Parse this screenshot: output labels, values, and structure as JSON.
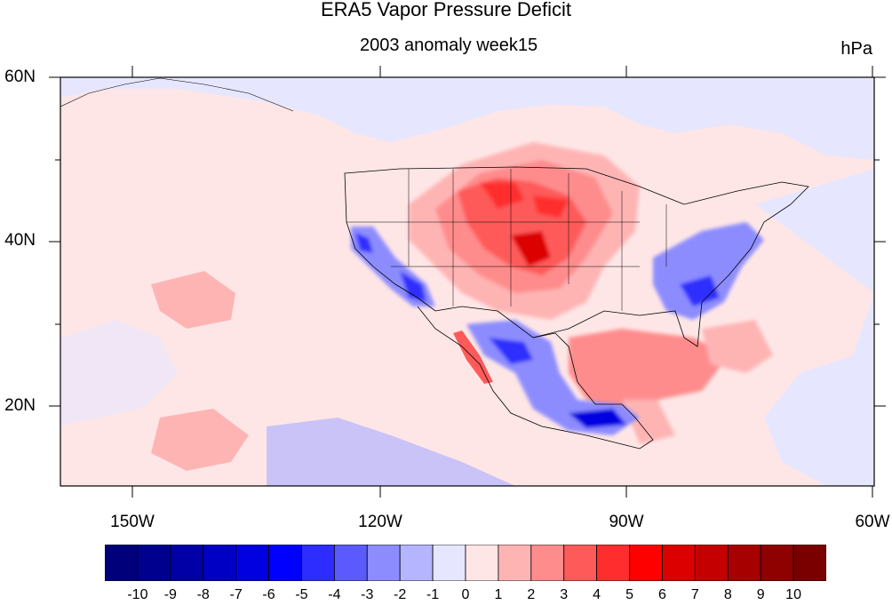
{
  "title": "ERA5 Vapor Pressure Deficit",
  "subtitle": "2003 anomaly week15",
  "units": "hPa",
  "map": {
    "lon_range": [
      -160,
      -60
    ],
    "lat_range": [
      10,
      60
    ],
    "lat_labels": [
      "60N",
      "40N",
      "20N"
    ],
    "lon_labels": [
      "150W",
      "120W",
      "90W",
      "60W"
    ]
  },
  "colorbar": {
    "labels": [
      "-10",
      "-9",
      "-8",
      "-7",
      "-6",
      "-5",
      "-4",
      "-3",
      "-2",
      "-1",
      "0",
      "1",
      "2",
      "3",
      "4",
      "5",
      "6",
      "7",
      "8",
      "9",
      "10"
    ],
    "colors": [
      "#00007a",
      "#00008f",
      "#0000a6",
      "#0000c4",
      "#0000e0",
      "#0000ff",
      "#2d2dff",
      "#5a5aff",
      "#8c8cff",
      "#b4b4ff",
      "#e6e6ff",
      "#ffe6e6",
      "#ffb4b4",
      "#ff8c8c",
      "#ff5a5a",
      "#ff2d2d",
      "#ff0000",
      "#dc0000",
      "#c40000",
      "#a60000",
      "#8f0000",
      "#7a0000"
    ]
  }
}
